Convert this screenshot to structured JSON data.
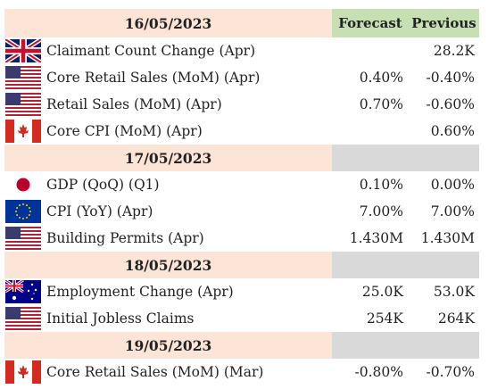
{
  "columns": {
    "forecast": "Forecast",
    "previous": "Previous"
  },
  "days": [
    {
      "date": "16/05/2023",
      "events": [
        {
          "flag": "uk-flag-icon",
          "event": "Claimant Count Change (Apr)",
          "forecast": "",
          "previous": "28.2K"
        },
        {
          "flag": "us-flag-icon",
          "event": "Core Retail Sales (MoM) (Apr)",
          "forecast": "0.40%",
          "previous": "-0.40%"
        },
        {
          "flag": "us-flag-icon",
          "event": "Retail Sales (MoM) (Apr)",
          "forecast": "0.70%",
          "previous": "-0.60%"
        },
        {
          "flag": "canada-flag-icon",
          "event": "Core CPI (MoM) (Apr)",
          "forecast": "",
          "previous": "0.60%"
        }
      ]
    },
    {
      "date": "17/05/2023",
      "events": [
        {
          "flag": "japan-flag-icon",
          "event": "GDP (QoQ) (Q1)",
          "forecast": "0.10%",
          "previous": "0.00%"
        },
        {
          "flag": "eu-flag-icon",
          "event": "CPI (YoY) (Apr)",
          "forecast": "7.00%",
          "previous": "7.00%"
        },
        {
          "flag": "us-flag-icon",
          "event": "Building Permits (Apr)",
          "forecast": "1.430M",
          "previous": "1.430M"
        }
      ]
    },
    {
      "date": "18/05/2023",
      "events": [
        {
          "flag": "australia-flag-icon",
          "event": "Employment Change (Apr)",
          "forecast": "25.0K",
          "previous": "53.0K"
        },
        {
          "flag": "us-flag-icon",
          "event": "Initial Jobless Claims",
          "forecast": "254K",
          "previous": "264K"
        }
      ]
    },
    {
      "date": "19/05/2023",
      "events": [
        {
          "flag": "canada-flag-icon",
          "event": "Core Retail Sales (MoM) (Mar)",
          "forecast": "-0.80%",
          "previous": "-0.70%"
        }
      ]
    }
  ],
  "colors": {
    "date_header_bg": "#fce4d6",
    "column_header_bg": "#c6e0b4",
    "grey_cell_bg": "#d9d9d9"
  }
}
